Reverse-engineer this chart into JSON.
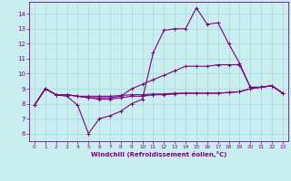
{
  "xlabel": "Windchill (Refroidissement éolien,°C)",
  "bg_color": "#c8eef0",
  "line_color": "#800080",
  "grid_color": "#a8d8dc",
  "x_ticks": [
    0,
    1,
    2,
    3,
    4,
    5,
    6,
    7,
    8,
    9,
    10,
    11,
    12,
    13,
    14,
    15,
    16,
    17,
    18,
    19,
    20,
    21,
    22,
    23
  ],
  "y_ticks": [
    6,
    7,
    8,
    9,
    10,
    11,
    12,
    13,
    14
  ],
  "ylim": [
    5.5,
    14.8
  ],
  "xlim": [
    -0.5,
    23.5
  ],
  "line1": [
    7.9,
    9.0,
    8.6,
    8.5,
    7.9,
    6.0,
    7.0,
    7.2,
    7.5,
    8.0,
    8.3,
    11.4,
    12.9,
    13.0,
    13.0,
    14.4,
    13.3,
    13.4,
    12.0,
    10.7,
    9.1,
    9.1,
    9.2,
    8.7
  ],
  "line2": [
    7.9,
    9.0,
    8.6,
    8.6,
    8.5,
    8.4,
    8.4,
    8.4,
    8.5,
    9.0,
    9.3,
    9.6,
    9.9,
    10.2,
    10.5,
    10.5,
    10.5,
    10.6,
    10.6,
    10.6,
    9.1,
    9.1,
    9.2,
    8.7
  ],
  "line3": [
    7.9,
    9.0,
    8.6,
    8.6,
    8.5,
    8.4,
    8.3,
    8.3,
    8.4,
    8.5,
    8.5,
    8.6,
    8.6,
    8.65,
    8.7,
    8.7,
    8.7,
    8.7,
    8.75,
    8.8,
    9.0,
    9.1,
    9.2,
    8.7
  ],
  "line4": [
    7.9,
    9.0,
    8.6,
    8.6,
    8.5,
    8.5,
    8.5,
    8.5,
    8.55,
    8.6,
    8.6,
    8.65,
    8.65,
    8.7,
    8.7,
    8.7,
    8.7,
    8.7,
    8.75,
    8.8,
    9.0,
    9.1,
    9.2,
    8.7
  ]
}
